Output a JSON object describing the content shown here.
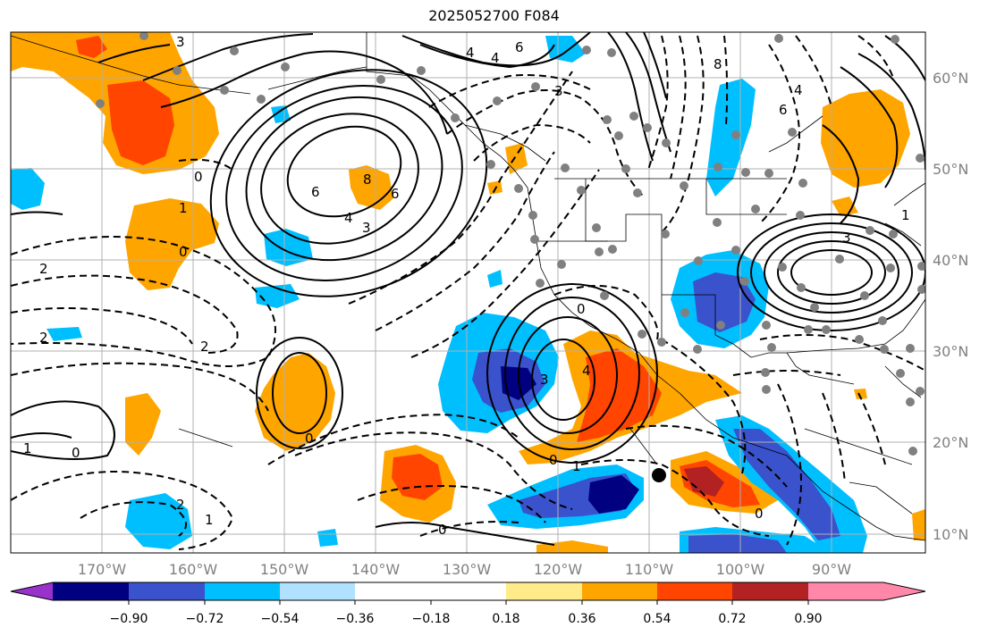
{
  "title": "2025052700 F084",
  "longitude_labels": [
    "170°W",
    "160°W",
    "150°W",
    "140°W",
    "130°W",
    "120°W",
    "110°W",
    "100°W",
    "90°W"
  ],
  "latitude_labels": [
    "60°N",
    "50°N",
    "40°N",
    "30°N",
    "20°N",
    "10°N"
  ],
  "colorbar": {
    "tick_labels": [
      "−0.90",
      "−0.72",
      "−0.54",
      "−0.36",
      "−0.18",
      "0.18",
      "0.36",
      "0.54",
      "0.72",
      "0.90"
    ],
    "colors": [
      "#9932cc",
      "#000080",
      "#3a52cc",
      "#00bfff",
      "#b0e2ff",
      "#ffffff",
      "#ffeb8a",
      "#ffa500",
      "#ff4500",
      "#b22222",
      "#ff88aa"
    ]
  },
  "contour_labels": [
    "3",
    "6",
    "4",
    "3",
    "6",
    "8",
    "6",
    "4",
    "4",
    "3",
    "1",
    "0",
    "2",
    "2",
    "0",
    "1",
    "0",
    "2",
    "1",
    "0",
    "0",
    "3",
    "4",
    "0",
    "1",
    "0",
    "2",
    "8",
    "6",
    "4",
    "3",
    "1",
    "0"
  ],
  "legend_colors": {
    "solid_contour": "#000000",
    "grid": "#b0b0b0",
    "dots": "#808080",
    "marker": "#000000"
  }
}
